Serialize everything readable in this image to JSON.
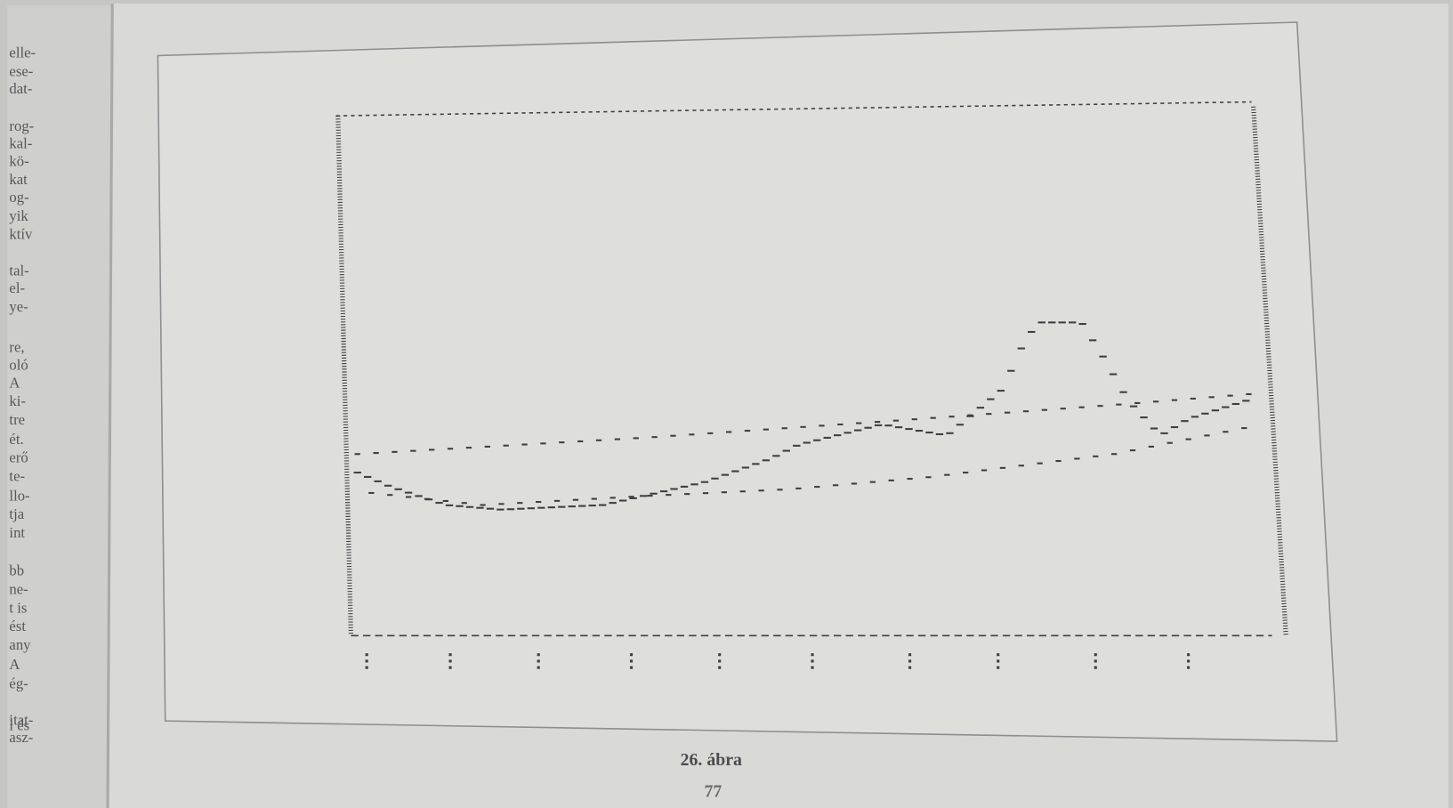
{
  "margin_text": [
    "elle-",
    "ese-",
    "dat-",
    "rog-",
    "kal-",
    "kö-",
    "kat",
    "og-",
    "yik",
    "ktív",
    "tal-",
    "el-",
    "ye-",
    "re,",
    "oló",
    "A",
    "ki-",
    "tre",
    "ét.",
    "erő",
    "te-",
    "llo-",
    "tja",
    "int",
    "bb",
    "ne-",
    "t is",
    "ést",
    "any",
    "A",
    "ég-",
    "itat-",
    "asz-",
    "l és"
  ],
  "figure": {
    "caption": "26. ábra"
  },
  "page_number": "77"
}
